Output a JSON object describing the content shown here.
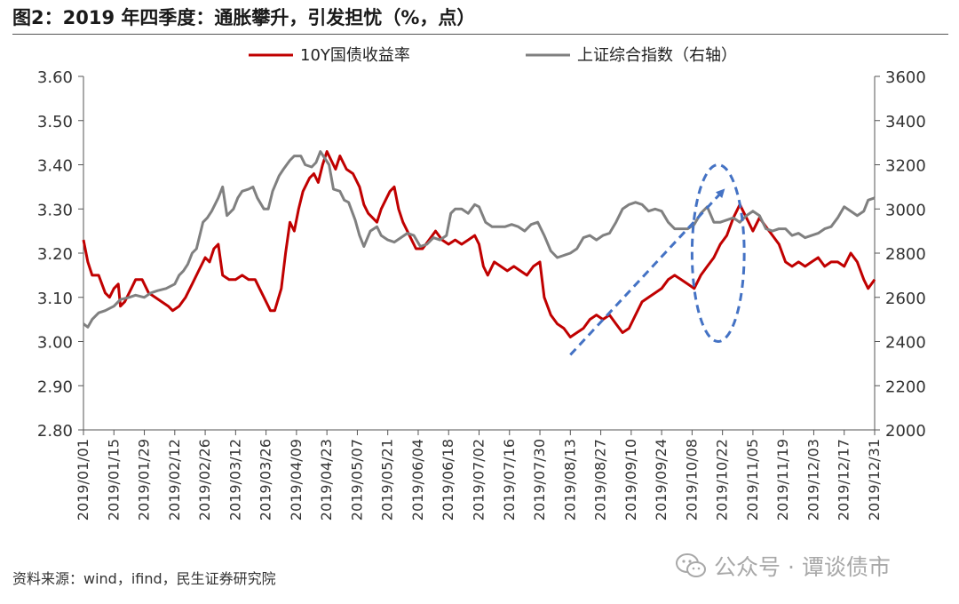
{
  "figure": {
    "title": "图2：2019 年四季度：通胀攀升，引发担忧（%，点）",
    "source": "资料来源：wind，ifind，民生证券研究院",
    "watermark": "公众号 · 谭谈债市"
  },
  "chart_data": {
    "type": "line",
    "title": "图2：2019 年四季度：通胀攀升，引发担忧（%，点）",
    "legend_position": "top-center",
    "grid": false,
    "colors": {
      "series_10y": "#c00000",
      "series_sse": "#808080",
      "annotation": "#4472c4"
    },
    "y_left": {
      "min": 2.8,
      "max": 3.6,
      "ticks": [
        "3.60",
        "3.50",
        "3.40",
        "3.30",
        "3.20",
        "3.10",
        "3.00",
        "2.90",
        "2.80"
      ]
    },
    "y_right": {
      "min": 2000,
      "max": 3600,
      "ticks": [
        "3600",
        "3400",
        "3200",
        "3000",
        "2800",
        "2600",
        "2400",
        "2200",
        "2000"
      ]
    },
    "x_ticks": [
      "2019/01/01",
      "2019/01/15",
      "2019/01/29",
      "2019/02/12",
      "2019/02/26",
      "2019/03/12",
      "2019/03/26",
      "2019/04/09",
      "2019/04/23",
      "2019/05/07",
      "2019/05/21",
      "2019/06/04",
      "2019/06/18",
      "2019/07/02",
      "2019/07/16",
      "2019/07/30",
      "2019/08/13",
      "2019/08/27",
      "2019/09/10",
      "2019/09/24",
      "2019/10/08",
      "2019/10/22",
      "2019/11/05",
      "2019/11/19",
      "2019/12/03",
      "2019/12/17",
      "2019/12/31"
    ],
    "series": [
      {
        "name": "10Y国债收益率",
        "axis": "left",
        "points": [
          [
            "01/01",
            3.23
          ],
          [
            "01/03",
            3.18
          ],
          [
            "01/05",
            3.15
          ],
          [
            "01/08",
            3.15
          ],
          [
            "01/11",
            3.11
          ],
          [
            "01/13",
            3.1
          ],
          [
            "01/15",
            3.12
          ],
          [
            "01/17",
            3.13
          ],
          [
            "01/18",
            3.08
          ],
          [
            "01/20",
            3.09
          ],
          [
            "01/23",
            3.12
          ],
          [
            "01/25",
            3.14
          ],
          [
            "01/28",
            3.14
          ],
          [
            "01/31",
            3.11
          ],
          [
            "02/03",
            3.1
          ],
          [
            "02/06",
            3.09
          ],
          [
            "02/09",
            3.08
          ],
          [
            "02/11",
            3.07
          ],
          [
            "02/14",
            3.08
          ],
          [
            "02/17",
            3.1
          ],
          [
            "02/20",
            3.13
          ],
          [
            "02/23",
            3.16
          ],
          [
            "02/26",
            3.19
          ],
          [
            "02/28",
            3.18
          ],
          [
            "03/02",
            3.21
          ],
          [
            "03/04",
            3.22
          ],
          [
            "03/06",
            3.15
          ],
          [
            "03/09",
            3.14
          ],
          [
            "03/12",
            3.14
          ],
          [
            "03/15",
            3.15
          ],
          [
            "03/18",
            3.14
          ],
          [
            "03/21",
            3.14
          ],
          [
            "03/23",
            3.12
          ],
          [
            "03/25",
            3.1
          ],
          [
            "03/27",
            3.08
          ],
          [
            "03/28",
            3.07
          ],
          [
            "03/30",
            3.07
          ],
          [
            "04/02",
            3.12
          ],
          [
            "04/04",
            3.2
          ],
          [
            "04/06",
            3.27
          ],
          [
            "04/08",
            3.25
          ],
          [
            "04/10",
            3.3
          ],
          [
            "04/12",
            3.34
          ],
          [
            "04/15",
            3.37
          ],
          [
            "04/17",
            3.38
          ],
          [
            "04/19",
            3.36
          ],
          [
            "04/21",
            3.4
          ],
          [
            "04/23",
            3.43
          ],
          [
            "04/25",
            3.41
          ],
          [
            "04/27",
            3.39
          ],
          [
            "04/29",
            3.42
          ],
          [
            "05/02",
            3.39
          ],
          [
            "05/05",
            3.38
          ],
          [
            "05/08",
            3.35
          ],
          [
            "05/10",
            3.31
          ],
          [
            "05/12",
            3.29
          ],
          [
            "05/14",
            3.28
          ],
          [
            "05/16",
            3.27
          ],
          [
            "05/18",
            3.3
          ],
          [
            "05/20",
            3.32
          ],
          [
            "05/22",
            3.34
          ],
          [
            "05/24",
            3.35
          ],
          [
            "05/26",
            3.3
          ],
          [
            "05/28",
            3.27
          ],
          [
            "05/30",
            3.25
          ],
          [
            "06/01",
            3.23
          ],
          [
            "06/03",
            3.21
          ],
          [
            "06/06",
            3.21
          ],
          [
            "06/09",
            3.23
          ],
          [
            "06/12",
            3.25
          ],
          [
            "06/15",
            3.23
          ],
          [
            "06/18",
            3.22
          ],
          [
            "06/21",
            3.23
          ],
          [
            "06/24",
            3.22
          ],
          [
            "06/27",
            3.23
          ],
          [
            "06/30",
            3.24
          ],
          [
            "07/02",
            3.22
          ],
          [
            "07/04",
            3.17
          ],
          [
            "07/06",
            3.15
          ],
          [
            "07/09",
            3.18
          ],
          [
            "07/12",
            3.17
          ],
          [
            "07/15",
            3.16
          ],
          [
            "07/18",
            3.17
          ],
          [
            "07/21",
            3.16
          ],
          [
            "07/24",
            3.15
          ],
          [
            "07/27",
            3.17
          ],
          [
            "07/30",
            3.18
          ],
          [
            "08/01",
            3.1
          ],
          [
            "08/04",
            3.06
          ],
          [
            "08/07",
            3.04
          ],
          [
            "08/10",
            3.03
          ],
          [
            "08/13",
            3.01
          ],
          [
            "08/16",
            3.02
          ],
          [
            "08/19",
            3.03
          ],
          [
            "08/22",
            3.05
          ],
          [
            "08/25",
            3.06
          ],
          [
            "08/28",
            3.05
          ],
          [
            "08/31",
            3.06
          ],
          [
            "09/03",
            3.04
          ],
          [
            "09/06",
            3.02
          ],
          [
            "09/09",
            3.03
          ],
          [
            "09/12",
            3.06
          ],
          [
            "09/15",
            3.09
          ],
          [
            "09/18",
            3.1
          ],
          [
            "09/21",
            3.11
          ],
          [
            "09/24",
            3.12
          ],
          [
            "09/27",
            3.14
          ],
          [
            "09/30",
            3.15
          ],
          [
            "10/03",
            3.14
          ],
          [
            "10/06",
            3.13
          ],
          [
            "10/09",
            3.12
          ],
          [
            "10/12",
            3.15
          ],
          [
            "10/15",
            3.17
          ],
          [
            "10/18",
            3.19
          ],
          [
            "10/21",
            3.22
          ],
          [
            "10/24",
            3.24
          ],
          [
            "10/27",
            3.28
          ],
          [
            "10/30",
            3.31
          ],
          [
            "11/02",
            3.28
          ],
          [
            "11/05",
            3.25
          ],
          [
            "11/08",
            3.28
          ],
          [
            "11/11",
            3.26
          ],
          [
            "11/14",
            3.24
          ],
          [
            "11/17",
            3.22
          ],
          [
            "11/20",
            3.18
          ],
          [
            "11/23",
            3.17
          ],
          [
            "11/26",
            3.18
          ],
          [
            "11/29",
            3.17
          ],
          [
            "12/02",
            3.18
          ],
          [
            "12/05",
            3.19
          ],
          [
            "12/08",
            3.17
          ],
          [
            "12/11",
            3.18
          ],
          [
            "12/14",
            3.18
          ],
          [
            "12/17",
            3.17
          ],
          [
            "12/20",
            3.2
          ],
          [
            "12/23",
            3.18
          ],
          [
            "12/26",
            3.14
          ],
          [
            "12/28",
            3.12
          ],
          [
            "12/31",
            3.14
          ]
        ]
      },
      {
        "name": "上证综合指数（右轴）",
        "axis": "right",
        "points": [
          [
            "01/01",
            2480
          ],
          [
            "01/03",
            2465
          ],
          [
            "01/05",
            2500
          ],
          [
            "01/08",
            2530
          ],
          [
            "01/11",
            2540
          ],
          [
            "01/15",
            2560
          ],
          [
            "01/18",
            2590
          ],
          [
            "01/22",
            2600
          ],
          [
            "01/25",
            2610
          ],
          [
            "01/29",
            2600
          ],
          [
            "02/01",
            2620
          ],
          [
            "02/04",
            2630
          ],
          [
            "02/08",
            2640
          ],
          [
            "02/12",
            2660
          ],
          [
            "02/14",
            2700
          ],
          [
            "02/16",
            2720
          ],
          [
            "02/18",
            2750
          ],
          [
            "02/20",
            2800
          ],
          [
            "02/22",
            2820
          ],
          [
            "02/25",
            2940
          ],
          [
            "02/27",
            2960
          ],
          [
            "03/01",
            2990
          ],
          [
            "03/04",
            3050
          ],
          [
            "03/06",
            3100
          ],
          [
            "03/08",
            2970
          ],
          [
            "03/11",
            3000
          ],
          [
            "03/13",
            3050
          ],
          [
            "03/15",
            3080
          ],
          [
            "03/18",
            3090
          ],
          [
            "03/20",
            3100
          ],
          [
            "03/22",
            3050
          ],
          [
            "03/25",
            3000
          ],
          [
            "03/27",
            3000
          ],
          [
            "03/29",
            3080
          ],
          [
            "04/01",
            3150
          ],
          [
            "04/03",
            3180
          ],
          [
            "04/06",
            3220
          ],
          [
            "04/08",
            3240
          ],
          [
            "04/11",
            3240
          ],
          [
            "04/13",
            3200
          ],
          [
            "04/16",
            3190
          ],
          [
            "04/18",
            3210
          ],
          [
            "04/20",
            3260
          ],
          [
            "04/22",
            3230
          ],
          [
            "04/24",
            3200
          ],
          [
            "04/26",
            3090
          ],
          [
            "04/29",
            3080
          ],
          [
            "05/01",
            3040
          ],
          [
            "05/03",
            3030
          ],
          [
            "05/06",
            2950
          ],
          [
            "05/08",
            2880
          ],
          [
            "05/10",
            2830
          ],
          [
            "05/13",
            2900
          ],
          [
            "05/16",
            2920
          ],
          [
            "05/18",
            2880
          ],
          [
            "05/21",
            2860
          ],
          [
            "05/24",
            2850
          ],
          [
            "05/27",
            2870
          ],
          [
            "05/30",
            2890
          ],
          [
            "06/02",
            2880
          ],
          [
            "06/05",
            2830
          ],
          [
            "06/08",
            2840
          ],
          [
            "06/11",
            2870
          ],
          [
            "06/14",
            2860
          ],
          [
            "06/17",
            2880
          ],
          [
            "06/19",
            2980
          ],
          [
            "06/21",
            3000
          ],
          [
            "06/24",
            3000
          ],
          [
            "06/27",
            2980
          ],
          [
            "06/30",
            3020
          ],
          [
            "07/02",
            3010
          ],
          [
            "07/05",
            2940
          ],
          [
            "07/08",
            2920
          ],
          [
            "07/11",
            2920
          ],
          [
            "07/14",
            2920
          ],
          [
            "07/17",
            2930
          ],
          [
            "07/20",
            2920
          ],
          [
            "07/23",
            2900
          ],
          [
            "07/26",
            2930
          ],
          [
            "07/29",
            2940
          ],
          [
            "08/01",
            2880
          ],
          [
            "08/04",
            2810
          ],
          [
            "08/07",
            2780
          ],
          [
            "08/10",
            2790
          ],
          [
            "08/13",
            2800
          ],
          [
            "08/16",
            2820
          ],
          [
            "08/19",
            2870
          ],
          [
            "08/22",
            2880
          ],
          [
            "08/25",
            2860
          ],
          [
            "08/28",
            2880
          ],
          [
            "08/31",
            2890
          ],
          [
            "09/03",
            2940
          ],
          [
            "09/06",
            3000
          ],
          [
            "09/09",
            3020
          ],
          [
            "09/12",
            3030
          ],
          [
            "09/15",
            3020
          ],
          [
            "09/18",
            2990
          ],
          [
            "09/21",
            3000
          ],
          [
            "09/24",
            2990
          ],
          [
            "09/27",
            2940
          ],
          [
            "09/30",
            2910
          ],
          [
            "10/03",
            2910
          ],
          [
            "10/06",
            2910
          ],
          [
            "10/09",
            2930
          ],
          [
            "10/12",
            2980
          ],
          [
            "10/15",
            3010
          ],
          [
            "10/18",
            2940
          ],
          [
            "10/21",
            2940
          ],
          [
            "10/24",
            2950
          ],
          [
            "10/27",
            2960
          ],
          [
            "10/30",
            2940
          ],
          [
            "11/02",
            2970
          ],
          [
            "11/05",
            2990
          ],
          [
            "11/08",
            2970
          ],
          [
            "11/11",
            2910
          ],
          [
            "11/14",
            2900
          ],
          [
            "11/17",
            2910
          ],
          [
            "11/20",
            2910
          ],
          [
            "11/23",
            2880
          ],
          [
            "11/26",
            2890
          ],
          [
            "11/29",
            2870
          ],
          [
            "12/02",
            2880
          ],
          [
            "12/05",
            2890
          ],
          [
            "12/08",
            2910
          ],
          [
            "12/11",
            2920
          ],
          [
            "12/14",
            2960
          ],
          [
            "12/17",
            3010
          ],
          [
            "12/20",
            2990
          ],
          [
            "12/23",
            2970
          ],
          [
            "12/26",
            2990
          ],
          [
            "12/28",
            3040
          ],
          [
            "12/31",
            3050
          ]
        ]
      }
    ],
    "annotations": [
      {
        "kind": "dashed-arrow",
        "from": [
          "08/13",
          2.97
        ],
        "to": [
          "10/22",
          3.34
        ]
      },
      {
        "kind": "dashed-ellipse",
        "center": [
          "10/20",
          3.2
        ],
        "x_half_days": 12,
        "y_half": 0.2
      }
    ]
  }
}
